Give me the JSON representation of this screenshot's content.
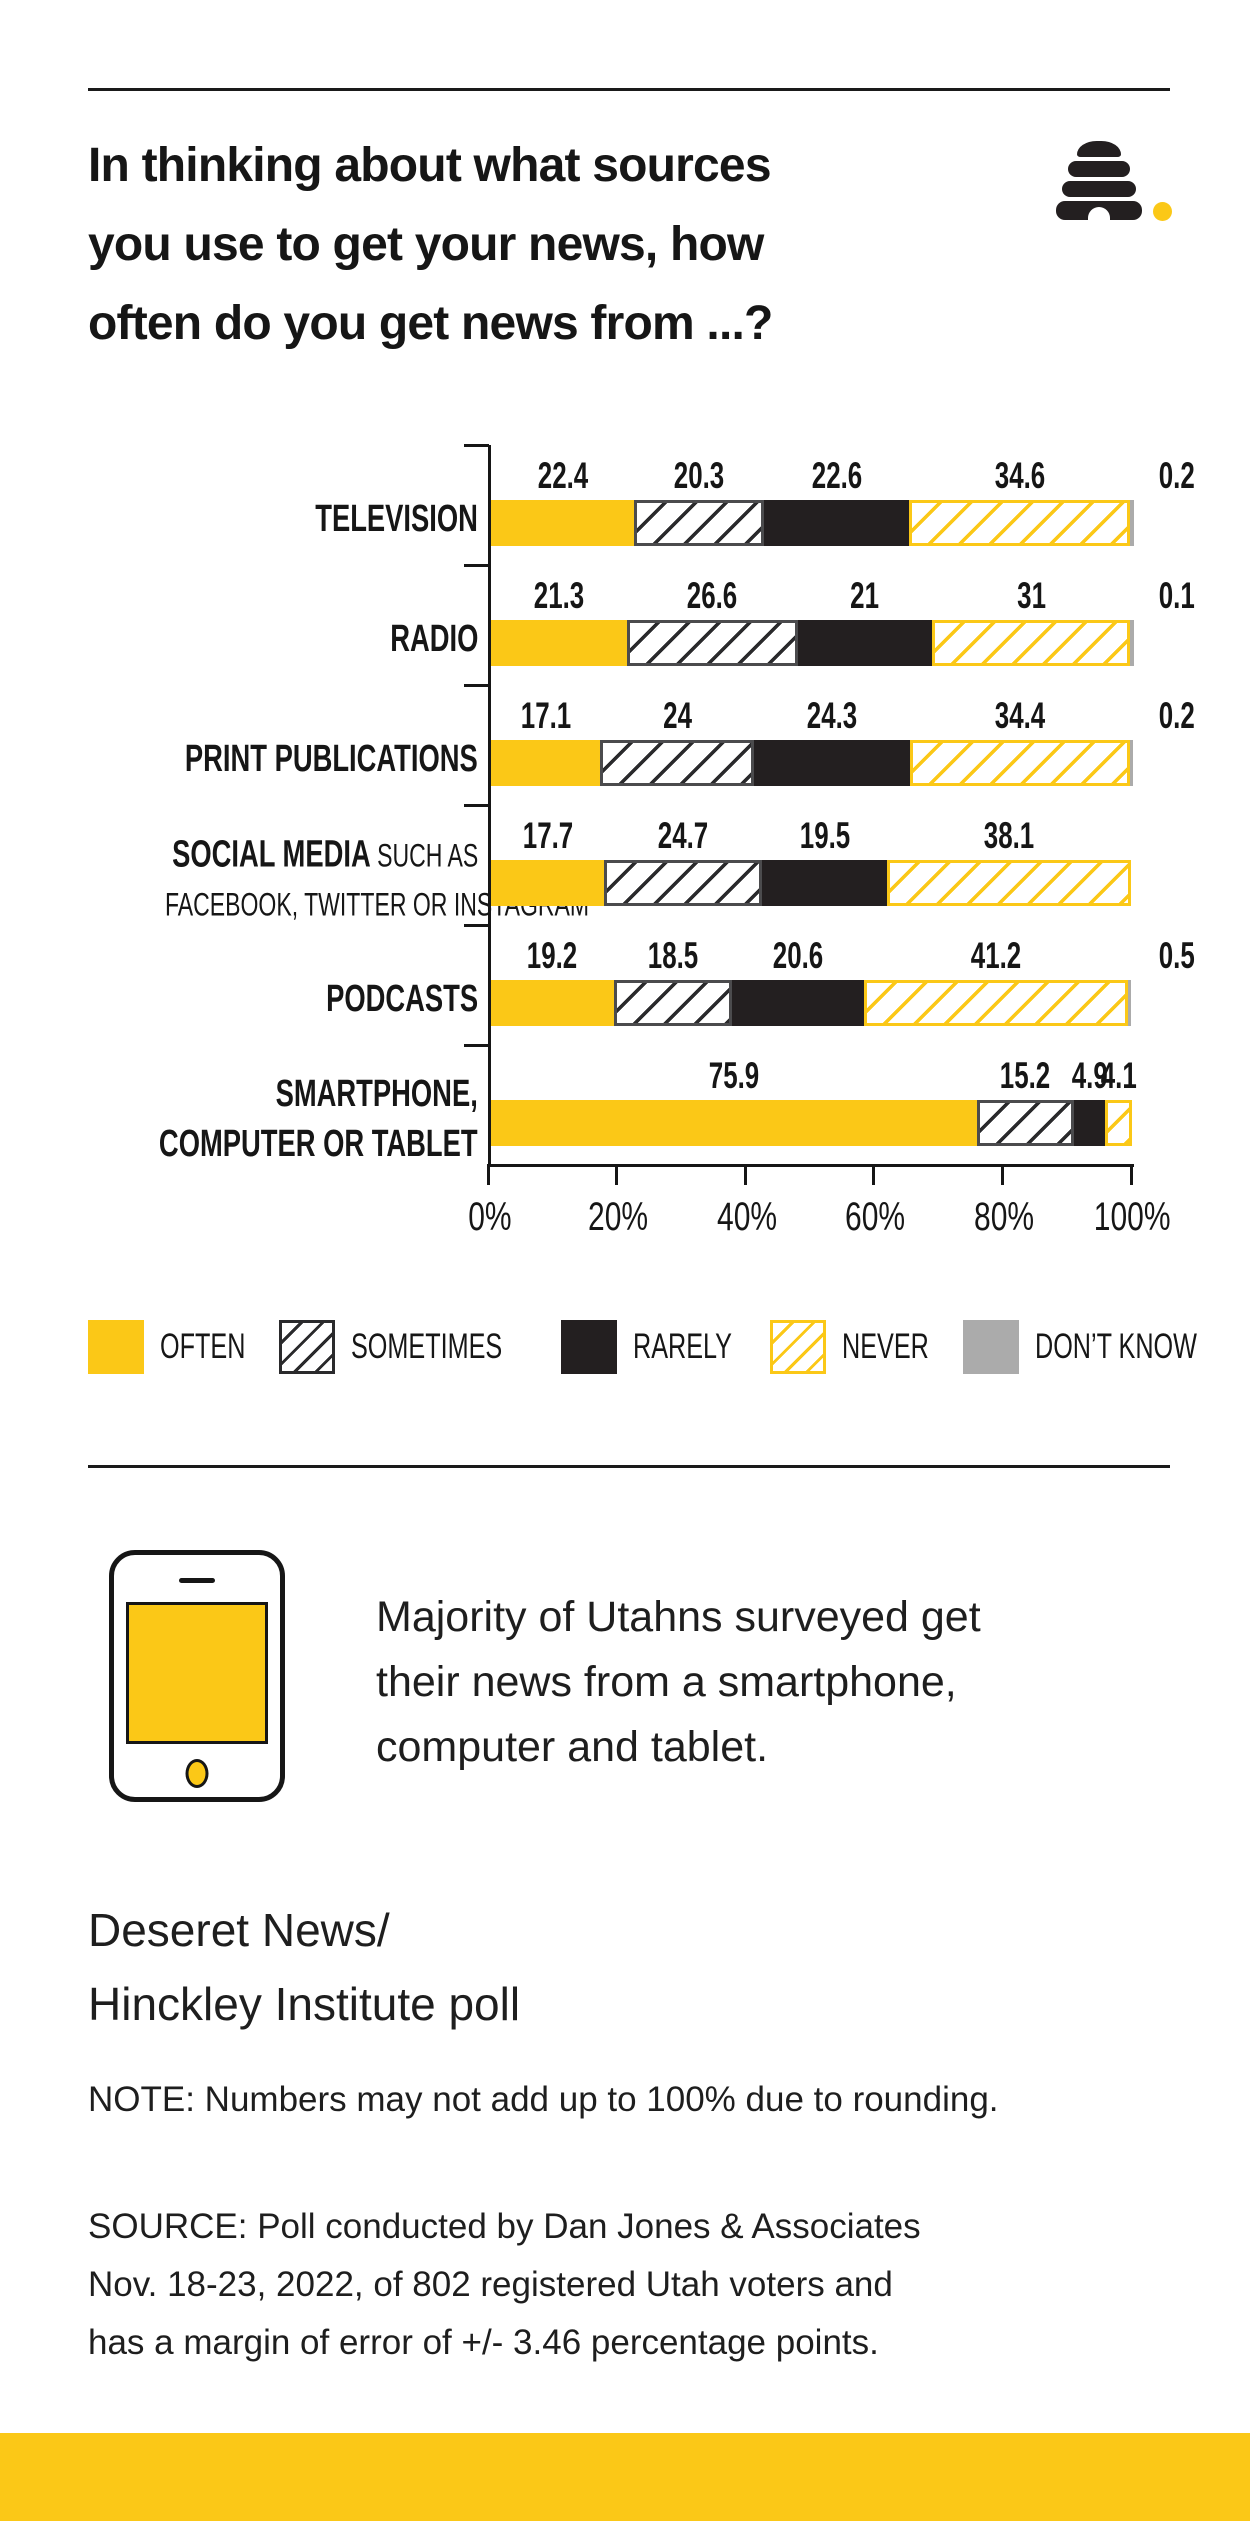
{
  "header": {
    "title_lines": [
      "In thinking about what sources",
      "you use to get your news, how",
      "often do you get news from ...?"
    ],
    "logo": "deseret-news-beehive"
  },
  "chart_data": {
    "type": "bar",
    "stacked": true,
    "orientation": "horizontal",
    "unit": "percent",
    "xlim": [
      0,
      100
    ],
    "x_ticks": [
      "0%",
      "20%",
      "40%",
      "60%",
      "80%",
      "100%"
    ],
    "series_names": [
      "OFTEN",
      "SOMETIMES",
      "RARELY",
      "NEVER",
      "DON'T KNOW"
    ],
    "rows": [
      {
        "label_lines": [
          [
            {
              "text": "TELEVISION",
              "style": "bold"
            }
          ]
        ],
        "values": [
          22.4,
          20.3,
          22.6,
          34.6,
          0.2
        ],
        "value_labels": [
          "22.4",
          "20.3",
          "22.6",
          "34.6",
          "0.2"
        ]
      },
      {
        "label_lines": [
          [
            {
              "text": "RADIO",
              "style": "bold"
            }
          ]
        ],
        "values": [
          21.3,
          26.6,
          21,
          31,
          0.1
        ],
        "value_labels": [
          "21.3",
          "26.6",
          "21",
          "31",
          "0.1"
        ]
      },
      {
        "label_lines": [
          [
            {
              "text": "PRINT PUBLICATIONS",
              "style": "bold"
            }
          ]
        ],
        "values": [
          17.1,
          24,
          24.3,
          34.4,
          0.2
        ],
        "value_labels": [
          "17.1",
          "24",
          "24.3",
          "34.4",
          "0.2"
        ]
      },
      {
        "label_lines": [
          [
            {
              "text": "SOCIAL MEDIA",
              "style": "bold"
            },
            {
              "text": " SUCH AS",
              "style": "light"
            }
          ],
          [
            {
              "text": "FACEBOOK, TWITTER OR INSTAGRAM",
              "style": "light"
            }
          ]
        ],
        "values": [
          17.7,
          24.7,
          19.5,
          38.1,
          null
        ],
        "value_labels": [
          "17.7",
          "24.7",
          "19.5",
          "38.1",
          ""
        ]
      },
      {
        "label_lines": [
          [
            {
              "text": "PODCASTS",
              "style": "bold"
            }
          ]
        ],
        "values": [
          19.2,
          18.5,
          20.6,
          41.2,
          0.5
        ],
        "value_labels": [
          "19.2",
          "18.5",
          "20.6",
          "41.2",
          "0.5"
        ]
      },
      {
        "label_lines": [
          [
            {
              "text": "SMARTPHONE,",
              "style": "bold"
            }
          ],
          [
            {
              "text": "COMPUTER OR TABLET",
              "style": "bold"
            }
          ]
        ],
        "values": [
          75.9,
          15.2,
          4.9,
          4.1,
          null
        ],
        "value_labels": [
          "75.9",
          "15.2",
          "4.9",
          "4.1",
          ""
        ]
      }
    ],
    "legend": [
      {
        "label": "OFTEN",
        "swatch": "solid-yellow"
      },
      {
        "label": "SOMETIMES",
        "swatch": "hatch-black"
      },
      {
        "label": "RARELY",
        "swatch": "solid-black"
      },
      {
        "label": "NEVER",
        "swatch": "hatch-yellow"
      },
      {
        "label": "DON’T KNOW",
        "swatch": "solid-gray"
      }
    ],
    "legend_position": "bottom",
    "grid": false
  },
  "callout": {
    "lines": [
      "Majority of Utahns surveyed get",
      "their news from a smartphone,",
      "computer and tablet."
    ]
  },
  "attribution": {
    "lines": [
      "Deseret News/",
      "Hinckley Institute poll"
    ]
  },
  "note": "NOTE: Numbers may not add up to 100% due to rounding.",
  "source_lines": [
    "SOURCE: Poll conducted by Dan Jones & Associates",
    "Nov. 18-23, 2022, of 802 registered Utah voters and",
    "has a margin of error of +/- 3.46 percentage points."
  ],
  "colors": {
    "yellow": "#FBC817",
    "black": "#231F20",
    "gray": "#ABABAB"
  }
}
